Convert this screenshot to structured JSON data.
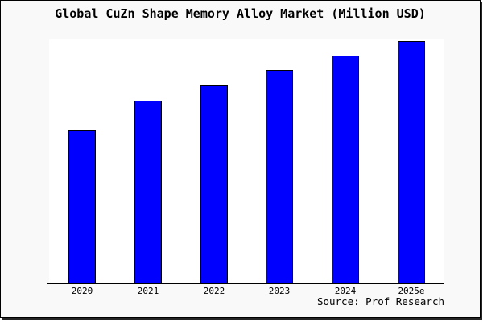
{
  "chart_data": {
    "type": "bar",
    "title": "Global CuZn Shape Memory Alloy Market (Million USD)",
    "categories": [
      "2020",
      "2021",
      "2022",
      "2023",
      "2024",
      "2025e"
    ],
    "values": [
      62.8,
      75.3,
      81.6,
      87.9,
      93.8,
      100
    ],
    "value_scale": "relative units estimated from bar heights; tallest bar (2025e) = 100; no y-axis labels shown in chart",
    "xlabel": "",
    "ylabel": "",
    "ylim": [
      0,
      100.6
    ],
    "grid": false,
    "legend": false,
    "y_axis_shown": false,
    "bar_color": "#0000ff",
    "bar_border_color": "#000000",
    "source": "Source: Prof Research"
  },
  "figure": {
    "background": "#f9f9f9",
    "plot_background": "#ffffff",
    "border_color": "#000000",
    "title_color": "#000000"
  }
}
